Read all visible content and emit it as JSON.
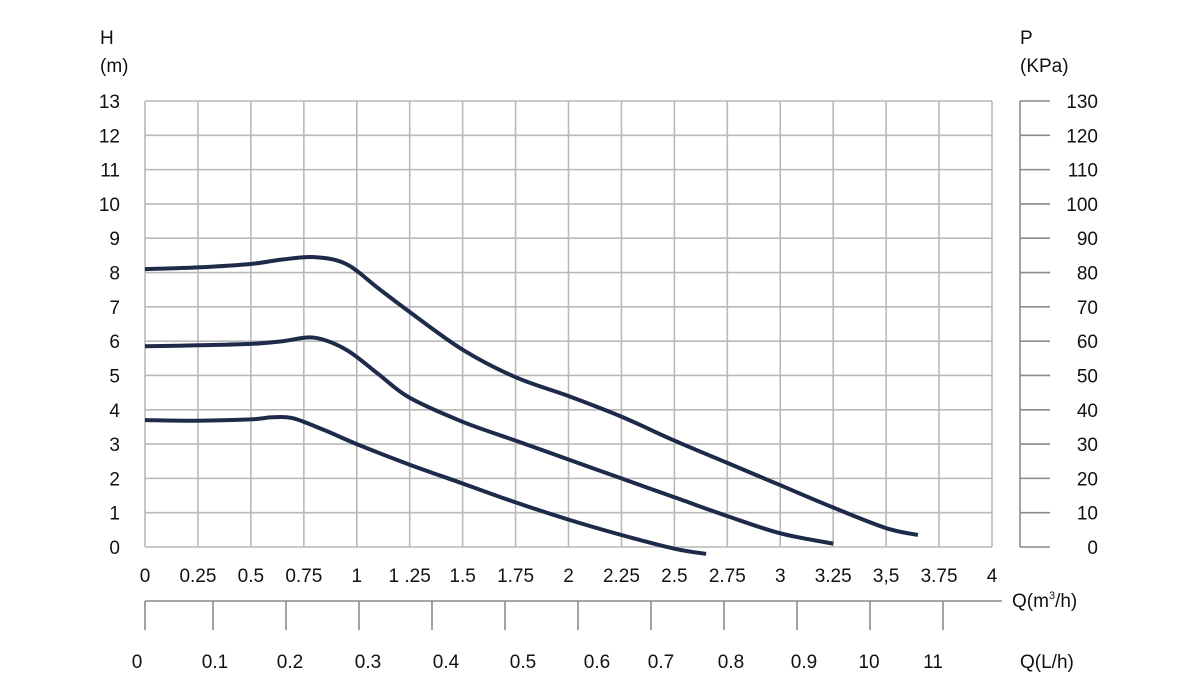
{
  "chart_data": {
    "type": "line",
    "left_axis": {
      "title": "H",
      "unit": "(m)",
      "ticks": [
        "0",
        "1",
        "2",
        "3",
        "4",
        "5",
        "6",
        "7",
        "8",
        "9",
        "10",
        "11",
        "12",
        "13"
      ],
      "range": [
        0,
        13
      ]
    },
    "right_axis": {
      "title": "P",
      "unit": "(KPa)",
      "ticks": [
        "0",
        "10",
        "20",
        "30",
        "40",
        "50",
        "60",
        "70",
        "80",
        "90",
        "100",
        "110",
        "120",
        "130"
      ],
      "range": [
        0,
        130
      ]
    },
    "x_axis": {
      "title_prefix": "Q(m",
      "title_sup": "3",
      "title_suffix": "/h)",
      "range": [
        0,
        4
      ],
      "ticks": [
        {
          "v": 0,
          "label": "0"
        },
        {
          "v": 0.25,
          "label": "0.25"
        },
        {
          "v": 0.5,
          "label": "0.5"
        },
        {
          "v": 0.75,
          "label": "0.75"
        },
        {
          "v": 1,
          "label": "1"
        },
        {
          "v": 1.25,
          "label": "1 .25"
        },
        {
          "v": 1.5,
          "label": "1.5"
        },
        {
          "v": 1.75,
          "label": "1.75"
        },
        {
          "v": 2,
          "label": "2"
        },
        {
          "v": 2.25,
          "label": "2.25"
        },
        {
          "v": 2.5,
          "label": "2.5"
        },
        {
          "v": 2.75,
          "label": "2.75"
        },
        {
          "v": 3,
          "label": "3"
        },
        {
          "v": 3.25,
          "label": "3.25"
        },
        {
          "v": 3.5,
          "label": "3,5"
        },
        {
          "v": 3.75,
          "label": "3.75"
        },
        {
          "v": 4,
          "label": "4"
        }
      ]
    },
    "secondary_x_axis": {
      "title": "Q(L/h)",
      "labels": [
        "0",
        "0.1",
        "0.2",
        "0.3",
        "0.4",
        "0.5",
        "0.6",
        "0.7",
        "0.8",
        "0.9",
        "10",
        "11"
      ]
    },
    "grid": true,
    "series": [
      {
        "x": [
          0,
          0.25,
          0.5,
          0.65,
          0.8,
          0.95,
          1.1,
          1.25,
          1.5,
          1.75,
          2,
          2.25,
          2.5,
          2.75,
          3,
          3.25,
          3.5,
          3.65
        ],
        "values": [
          8.1,
          8.15,
          8.25,
          8.38,
          8.45,
          8.25,
          7.55,
          6.85,
          5.75,
          4.95,
          4.4,
          3.8,
          3.1,
          2.45,
          1.8,
          1.15,
          0.55,
          0.35
        ]
      },
      {
        "x": [
          0,
          0.25,
          0.5,
          0.65,
          0.8,
          0.95,
          1.1,
          1.25,
          1.5,
          1.75,
          2,
          2.25,
          2.5,
          2.75,
          3,
          3.25
        ],
        "values": [
          5.85,
          5.88,
          5.92,
          6.0,
          6.1,
          5.75,
          5.05,
          4.35,
          3.65,
          3.1,
          2.55,
          2.0,
          1.45,
          0.9,
          0.4,
          0.1
        ]
      },
      {
        "x": [
          0,
          0.25,
          0.5,
          0.6,
          0.7,
          0.85,
          1,
          1.25,
          1.5,
          1.75,
          2,
          2.25,
          2.5,
          2.65
        ],
        "values": [
          3.7,
          3.68,
          3.72,
          3.78,
          3.75,
          3.4,
          3.0,
          2.4,
          1.85,
          1.3,
          0.8,
          0.35,
          -0.05,
          -0.2
        ]
      }
    ],
    "line_color": "#1e2a4a"
  }
}
